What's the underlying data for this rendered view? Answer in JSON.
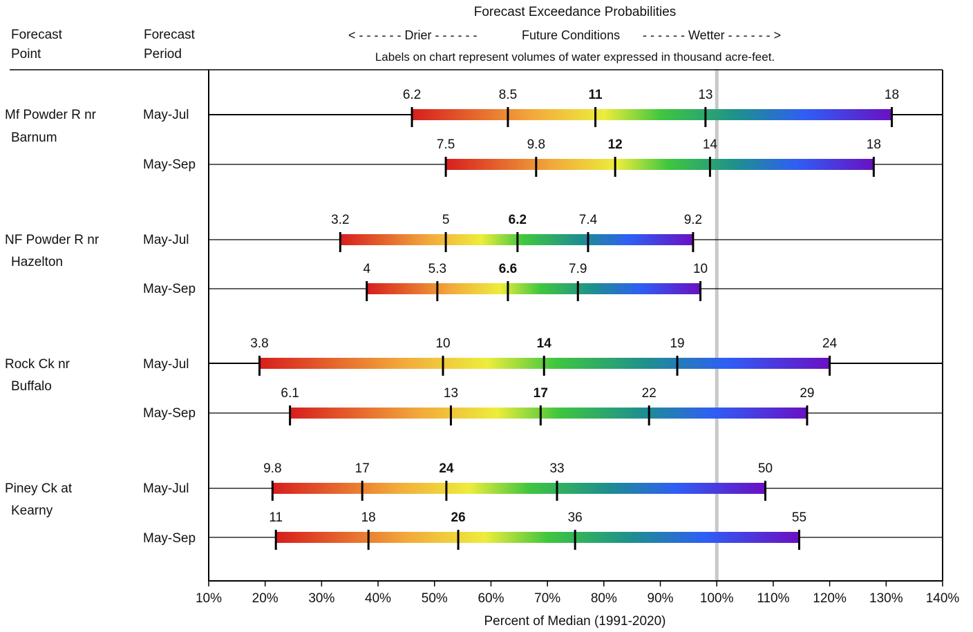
{
  "chart_data": {
    "type": "bar",
    "title": "Forecast Exceedance Probabilities",
    "direction_labels": {
      "left": "< - - - - - -  Drier  - - - - - -",
      "center": "Future Conditions",
      "right": "- - - - - -  Wetter  - - - - - - >"
    },
    "note": "Labels on chart represent volumes of water expressed in thousand acre-feet.",
    "column_headers": {
      "point": [
        "Forecast",
        "Point"
      ],
      "period": [
        "Forecast",
        "Period"
      ]
    },
    "xlabel": "Percent of Median (1991-2020)",
    "xlim": [
      10,
      140
    ],
    "xticks": [
      "10%",
      "20%",
      "30%",
      "40%",
      "50%",
      "60%",
      "70%",
      "80%",
      "90%",
      "100%",
      "110%",
      "120%",
      "130%",
      "140%"
    ],
    "reference_line_x": 100,
    "gradient_colors": [
      "#d71e1e",
      "#f2a93b",
      "#eded3c",
      "#3fc63f",
      "#1e8f8f",
      "#2f5ef5",
      "#6a10c2"
    ],
    "bold_label_index": 2,
    "groups": [
      {
        "point": [
          "Mf Powder R nr",
          "Barnum"
        ],
        "rows": [
          {
            "period": "May-Jul",
            "percent": [
              46,
              63,
              78.5,
              98,
              131
            ],
            "labels": [
              "6.2",
              "8.5",
              "11",
              "13",
              "18"
            ]
          },
          {
            "period": "May-Sep",
            "percent": [
              52,
              68,
              82,
              98.8,
              127.8
            ],
            "labels": [
              "7.5",
              "9.8",
              "12",
              "14",
              "18"
            ]
          }
        ]
      },
      {
        "point": [
          "NF Powder R nr",
          "Hazelton"
        ],
        "rows": [
          {
            "period": "May-Jul",
            "percent": [
              33.3,
              52,
              64.7,
              77.2,
              95.8
            ],
            "labels": [
              "3.2",
              "5",
              "6.2",
              "7.4",
              "9.2"
            ]
          },
          {
            "period": "May-Sep",
            "percent": [
              38,
              50.5,
              63,
              75.4,
              97.1
            ],
            "labels": [
              "4",
              "5.3",
              "6.6",
              "7.9",
              "10"
            ]
          }
        ]
      },
      {
        "point": [
          "Rock Ck nr",
          "Buffalo"
        ],
        "rows": [
          {
            "period": "May-Jul",
            "percent": [
              19,
              51.5,
              69.4,
              93,
              120
            ],
            "labels": [
              "3.8",
              "10",
              "14",
              "19",
              "24"
            ]
          },
          {
            "period": "May-Sep",
            "percent": [
              24.4,
              52.9,
              68.8,
              88,
              116
            ],
            "labels": [
              "6.1",
              "13",
              "17",
              "22",
              "29"
            ]
          }
        ]
      },
      {
        "point": [
          "Piney Ck at",
          "Kearny"
        ],
        "rows": [
          {
            "period": "May-Jul",
            "percent": [
              21.3,
              37.2,
              52.1,
              71.7,
              108.6
            ],
            "labels": [
              "9.8",
              "17",
              "24",
              "33",
              "50"
            ]
          },
          {
            "period": "May-Sep",
            "percent": [
              21.9,
              38.3,
              54.2,
              74.9,
              114.6
            ],
            "labels": [
              "11",
              "18",
              "26",
              "36",
              "55"
            ]
          }
        ]
      }
    ]
  }
}
